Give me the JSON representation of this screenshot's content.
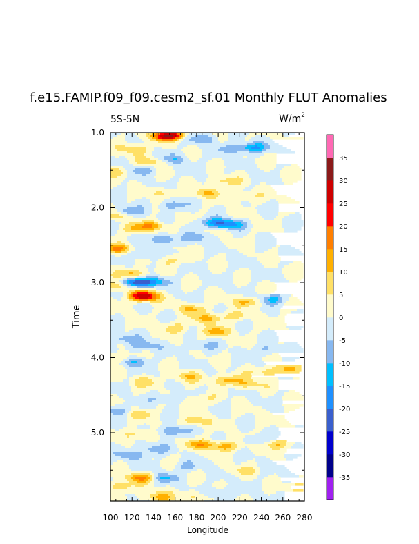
{
  "chart_data": {
    "type": "heatmap",
    "title": "f.e15.FAMIP.f09_f09.cesm2_sf.01 Monthly FLUT Anomalies",
    "region_label": "5S-5N",
    "units_base": "W/m",
    "units_exp": "2",
    "xlabel": "Longitude",
    "ylabel": "Time",
    "xlim": [
      100,
      280
    ],
    "ylim": [
      1.0,
      5.9
    ],
    "y_reversed": true,
    "x_ticks": [
      100,
      120,
      140,
      160,
      180,
      200,
      220,
      240,
      260,
      280
    ],
    "x_tick_labels": [
      "100",
      "120",
      "140",
      "160",
      "180",
      "200",
      "220",
      "240",
      "260",
      "280"
    ],
    "y_ticks": [
      1.0,
      2.0,
      3.0,
      4.0,
      5.0
    ],
    "y_tick_labels": [
      "1.0",
      "2.0",
      "3.0",
      "4.0",
      "5.0"
    ],
    "colorbar": {
      "levels": [
        -35,
        -30,
        -25,
        -20,
        -15,
        -10,
        -5,
        0,
        5,
        10,
        15,
        20,
        25,
        30,
        35
      ],
      "labels": [
        "-35",
        "-30",
        "-25",
        "-20",
        "-15",
        "-10",
        "-5",
        "0",
        "5",
        "10",
        "15",
        "20",
        "25",
        "30",
        "35"
      ],
      "colors": [
        "#a020f0",
        "#00008b",
        "#0000cd",
        "#3a5fcd",
        "#1e90ff",
        "#00bfff",
        "#87b8f0",
        "#d4ecfb",
        "#fffbcc",
        "#ffe066",
        "#ffb000",
        "#ff7f00",
        "#ff0000",
        "#cd0000",
        "#8b1a1a",
        "#ff69b4"
      ]
    },
    "features": [
      {
        "lon": 157,
        "time": 1.03,
        "value": 22
      },
      {
        "lon": 148,
        "time": 1.05,
        "value": 14
      },
      {
        "lon": 185,
        "time": 1.08,
        "value": -10
      },
      {
        "lon": 232,
        "time": 1.2,
        "value": -15
      },
      {
        "lon": 212,
        "time": 1.22,
        "value": -8
      },
      {
        "lon": 122,
        "time": 1.22,
        "value": 11
      },
      {
        "lon": 140,
        "time": 1.38,
        "value": 9
      },
      {
        "lon": 158,
        "time": 1.35,
        "value": -10
      },
      {
        "lon": 128,
        "time": 1.5,
        "value": -8
      },
      {
        "lon": 106,
        "time": 1.52,
        "value": 8
      },
      {
        "lon": 205,
        "time": 1.65,
        "value": 8
      },
      {
        "lon": 190,
        "time": 1.8,
        "value": 10
      },
      {
        "lon": 225,
        "time": 1.85,
        "value": 7
      },
      {
        "lon": 149,
        "time": 1.8,
        "value": 7
      },
      {
        "lon": 158,
        "time": 1.97,
        "value": -9
      },
      {
        "lon": 115,
        "time": 2.05,
        "value": -10
      },
      {
        "lon": 105,
        "time": 2.1,
        "value": 9
      },
      {
        "lon": 195,
        "time": 2.2,
        "value": -13
      },
      {
        "lon": 210,
        "time": 2.22,
        "value": -16
      },
      {
        "lon": 138,
        "time": 2.24,
        "value": 13
      },
      {
        "lon": 122,
        "time": 2.28,
        "value": 9
      },
      {
        "lon": 180,
        "time": 2.4,
        "value": -7
      },
      {
        "lon": 150,
        "time": 2.42,
        "value": -11
      },
      {
        "lon": 106,
        "time": 2.55,
        "value": 16
      },
      {
        "lon": 128,
        "time": 2.62,
        "value": -8
      },
      {
        "lon": 160,
        "time": 2.7,
        "value": 6
      },
      {
        "lon": 120,
        "time": 2.88,
        "value": 13
      },
      {
        "lon": 125,
        "time": 3.0,
        "value": -26
      },
      {
        "lon": 142,
        "time": 2.98,
        "value": -10
      },
      {
        "lon": 131,
        "time": 3.18,
        "value": 30
      },
      {
        "lon": 108,
        "time": 3.05,
        "value": 10
      },
      {
        "lon": 226,
        "time": 3.25,
        "value": 12
      },
      {
        "lon": 250,
        "time": 3.22,
        "value": -12
      },
      {
        "lon": 176,
        "time": 3.35,
        "value": 11
      },
      {
        "lon": 190,
        "time": 3.48,
        "value": 12
      },
      {
        "lon": 215,
        "time": 3.45,
        "value": 7
      },
      {
        "lon": 198,
        "time": 3.65,
        "value": 12
      },
      {
        "lon": 160,
        "time": 3.6,
        "value": 8
      },
      {
        "lon": 112,
        "time": 3.75,
        "value": -9
      },
      {
        "lon": 132,
        "time": 3.85,
        "value": -9
      },
      {
        "lon": 185,
        "time": 3.85,
        "value": -7
      },
      {
        "lon": 245,
        "time": 3.9,
        "value": -6
      },
      {
        "lon": 106,
        "time": 4.0,
        "value": 8
      },
      {
        "lon": 122,
        "time": 4.05,
        "value": -10
      },
      {
        "lon": 262,
        "time": 4.15,
        "value": 10
      },
      {
        "lon": 208,
        "time": 4.3,
        "value": 12
      },
      {
        "lon": 228,
        "time": 4.35,
        "value": 9
      },
      {
        "lon": 243,
        "time": 4.2,
        "value": 8
      },
      {
        "lon": 172,
        "time": 4.25,
        "value": 9
      },
      {
        "lon": 135,
        "time": 4.32,
        "value": 7
      },
      {
        "lon": 150,
        "time": 4.55,
        "value": -8
      },
      {
        "lon": 185,
        "time": 4.55,
        "value": 6
      },
      {
        "lon": 105,
        "time": 4.7,
        "value": -9
      },
      {
        "lon": 128,
        "time": 4.75,
        "value": 7
      },
      {
        "lon": 180,
        "time": 4.85,
        "value": 9
      },
      {
        "lon": 158,
        "time": 4.98,
        "value": -12
      },
      {
        "lon": 128,
        "time": 5.02,
        "value": 8
      },
      {
        "lon": 183,
        "time": 5.15,
        "value": 12
      },
      {
        "lon": 205,
        "time": 5.18,
        "value": 13
      },
      {
        "lon": 255,
        "time": 5.15,
        "value": 10
      },
      {
        "lon": 235,
        "time": 5.1,
        "value": -5
      },
      {
        "lon": 140,
        "time": 5.22,
        "value": -9
      },
      {
        "lon": 120,
        "time": 5.3,
        "value": -9
      },
      {
        "lon": 170,
        "time": 5.45,
        "value": -6
      },
      {
        "lon": 225,
        "time": 5.5,
        "value": 6
      },
      {
        "lon": 128,
        "time": 5.6,
        "value": 16
      },
      {
        "lon": 150,
        "time": 5.6,
        "value": -10
      },
      {
        "lon": 110,
        "time": 5.72,
        "value": 10
      },
      {
        "lon": 275,
        "time": 5.72,
        "value": 9
      },
      {
        "lon": 145,
        "time": 5.85,
        "value": 12
      },
      {
        "lon": 180,
        "time": 5.84,
        "value": 7
      },
      {
        "lon": 200,
        "time": 5.8,
        "value": -8
      }
    ]
  }
}
